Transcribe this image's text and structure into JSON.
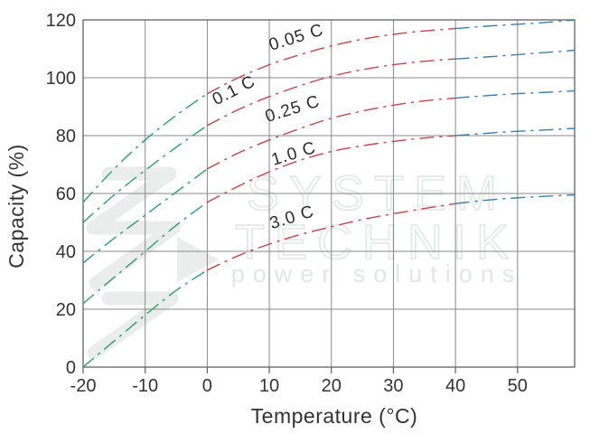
{
  "chart_data": {
    "type": "line",
    "xlabel": "Temperature (°C)",
    "ylabel": "Capacity (%)",
    "xlim": [
      -20,
      59.2
    ],
    "ylim": [
      0,
      120
    ],
    "grid": true,
    "line_style": "dash-dot",
    "x_ticks": [
      -20,
      -10,
      0,
      10,
      20,
      30,
      40,
      50
    ],
    "x_tick_labels": [
      "-20",
      "-10",
      "0",
      "10",
      "20",
      "30",
      "40",
      "50"
    ],
    "y_ticks": [
      0,
      20,
      40,
      60,
      80,
      100,
      120
    ],
    "y_tick_labels": [
      "0",
      "20",
      "40",
      "60",
      "80",
      "100",
      "120"
    ],
    "x": [
      -20,
      -15,
      -10,
      -5,
      0,
      5,
      10,
      15,
      20,
      25,
      30,
      35,
      40,
      45,
      50,
      55,
      59.2
    ],
    "series": [
      {
        "name": "0.05 C",
        "values": [
          57,
          68.5,
          78.5,
          87,
          94.5,
          100,
          104.5,
          108,
          111,
          113.3,
          115,
          116.2,
          117,
          117.8,
          118.5,
          119.2,
          120
        ]
      },
      {
        "name": "0.1 C",
        "values": [
          50,
          59.5,
          68,
          76,
          83.5,
          89,
          93.5,
          97.3,
          100.5,
          102.8,
          104.5,
          105.7,
          106.5,
          107.2,
          108,
          108.8,
          109.5
        ]
      },
      {
        "name": "0.25 C",
        "values": [
          36,
          44.5,
          52.5,
          60.5,
          68.5,
          74,
          78.5,
          82.5,
          86,
          88.5,
          90.5,
          92,
          93,
          93.8,
          94.5,
          95,
          95.5
        ]
      },
      {
        "name": "1.0 C",
        "values": [
          22,
          31,
          40,
          49,
          57,
          62.5,
          67.5,
          71.5,
          74.5,
          76.5,
          78,
          79.2,
          80,
          80.8,
          81.5,
          82,
          82.5
        ]
      },
      {
        "name": "3.0 C",
        "values": [
          0,
          9,
          18,
          26.5,
          33.5,
          38.5,
          42.5,
          45.8,
          48.5,
          51,
          53,
          54.8,
          56.5,
          57.7,
          58.5,
          59.1,
          59.5
        ]
      }
    ],
    "segment_colors": [
      {
        "t_range": [
          -20,
          0
        ],
        "color": "#2D9B72",
        "zone": "cold"
      },
      {
        "t_range": [
          0,
          40
        ],
        "color": "#C2444D",
        "zone": "normal"
      },
      {
        "t_range": [
          40,
          59.2
        ],
        "color": "#3C7EA5",
        "zone": "hot"
      }
    ],
    "curve_labels": [
      {
        "text": "0.05 C",
        "t": 14.6,
        "capacity": 112.2,
        "rotation": -17
      },
      {
        "text": "0.1 C",
        "t": 4.7,
        "capacity": 94.0,
        "rotation": -27
      },
      {
        "text": "0.25 C",
        "t": 14.0,
        "capacity": 87.5,
        "rotation": -17
      },
      {
        "text": "1.0 C",
        "t": 14.2,
        "capacity": 72.0,
        "rotation": -17
      },
      {
        "text": "3.0 C",
        "t": 13.9,
        "capacity": 50.0,
        "rotation": -17
      }
    ],
    "colors": {
      "grid": "#888888",
      "border": "#606060",
      "text": "#333333",
      "watermark": "#e6eae9"
    }
  },
  "watermark": {
    "line1": "SYSTEM",
    "line2": "TECHNIK",
    "line3": "power solutions"
  }
}
